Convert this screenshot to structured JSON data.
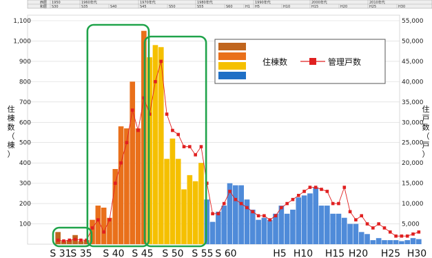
{
  "chart_data": {
    "type": "bar",
    "title": "",
    "header_rows": {
      "row1_label": "西暦",
      "row2_label": "和暦",
      "decades": [
        "1950",
        "1960年代",
        "1970年代",
        "1980年代",
        "1990年代",
        "2000年代",
        "2010年代"
      ],
      "era_marks": [
        "S30",
        "S35",
        "S40",
        "S45",
        "S50",
        "S55",
        "S60",
        "H1",
        "H5",
        "H10",
        "H15",
        "H20",
        "H25",
        "H30"
      ]
    },
    "y_left": {
      "label_chars": [
        "住",
        "棟",
        "数",
        "（",
        "棟",
        "）"
      ],
      "ylim": [
        0,
        1100
      ],
      "ticks": [
        "1,100",
        "1,000",
        "900",
        "800",
        "700",
        "600",
        "500",
        "400",
        "300",
        "200",
        "100"
      ]
    },
    "y_right": {
      "label_chars": [
        "住",
        "戸",
        "数",
        "（",
        "戸",
        "）"
      ],
      "ylim": [
        0,
        55000
      ],
      "ticks": [
        "55,000",
        "50,000",
        "45,000",
        "40,000",
        "35,000",
        "30,000",
        "25,000",
        "20,000",
        "15,000",
        "10,000",
        "5,000"
      ]
    },
    "x_tick_labels": [
      "S 31",
      "S 35",
      "S 40",
      "S 45",
      "S 50",
      "S 55",
      "S 60",
      "H5",
      "H10",
      "H15",
      "H20",
      "H25",
      "H30"
    ],
    "legend": {
      "left_label": "住棟数",
      "right_label": "管理戸数",
      "swatches": [
        "#c0651e",
        "#e9701b",
        "#f5c000",
        "#1f6fc5"
      ]
    },
    "colors": {
      "group1": "#c0651e",
      "group2": "#e9701b",
      "group3": "#f5c000",
      "group4": "#4f8bd9",
      "line": "#e02020",
      "highlight": "#1fa34a",
      "grid": "#cccccc"
    },
    "series": [
      {
        "chart_type": "bar",
        "axis": "left",
        "values": [
          60,
          15,
          20,
          45,
          15,
          20,
          120,
          190,
          180,
          130,
          370,
          580,
          570,
          800,
          570,
          1050,
          920,
          980,
          970,
          420,
          520,
          420,
          270,
          340,
          310,
          400,
          220,
          110,
          160,
          190,
          300,
          290,
          290,
          220,
          170,
          120,
          130,
          120,
          150,
          190,
          150,
          170,
          230,
          240,
          250,
          280,
          190,
          190,
          150,
          150,
          130,
          100,
          100,
          60,
          50,
          20,
          30,
          20,
          20,
          20,
          15,
          20,
          30,
          25
        ],
        "colors": [
          "g1",
          "g1",
          "g1",
          "g1",
          "g1",
          "g1",
          "g2",
          "g2",
          "g2",
          "g2",
          "g2",
          "g2",
          "g2",
          "g2",
          "g2",
          "g2",
          "g3",
          "g3",
          "g3",
          "g3",
          "g3",
          "g3",
          "g3",
          "g3",
          "g3",
          "g3",
          "g4",
          "g4",
          "g4",
          "g4",
          "g4",
          "g4",
          "g4",
          "g4",
          "g4",
          "g4",
          "g4",
          "g4",
          "g4",
          "g4",
          "g4",
          "g4",
          "g4",
          "g4",
          "g4",
          "g4",
          "g4",
          "g4",
          "g4",
          "g4",
          "g4",
          "g4",
          "g4",
          "g4",
          "g4",
          "g4",
          "g4",
          "g4",
          "g4",
          "g4",
          "g4",
          "g4",
          "g4",
          "g4"
        ]
      },
      {
        "chart_type": "line",
        "axis": "right",
        "values": [
          1000,
          800,
          1000,
          1200,
          1000,
          1000,
          4000,
          6000,
          3000,
          6000,
          15000,
          20000,
          25000,
          33000,
          28000,
          36000,
          32000,
          40000,
          45000,
          32000,
          28000,
          27000,
          24000,
          24000,
          22000,
          24000,
          15000,
          7500,
          7500,
          10000,
          13000,
          11000,
          10000,
          9000,
          8000,
          7000,
          7000,
          6000,
          7000,
          9000,
          10000,
          11000,
          12000,
          13000,
          14000,
          14000,
          13500,
          13000,
          10000,
          10000,
          14000,
          8000,
          6000,
          7000,
          5000,
          4000,
          5000,
          4000,
          3000,
          2000,
          2000,
          2000,
          2500,
          3000
        ]
      }
    ]
  }
}
